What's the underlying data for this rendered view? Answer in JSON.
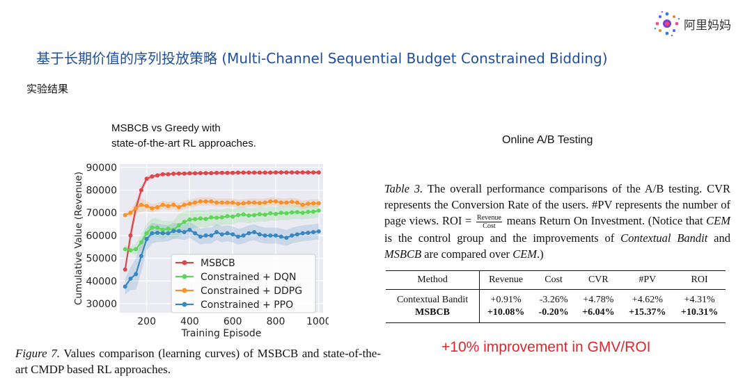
{
  "brand": {
    "name": "阿里妈妈"
  },
  "title": "基于长期价值的序列投放策略 (Multi-Channel Sequential Budget Constrained Bidding)",
  "section_label": "实验结果",
  "chart_heading": {
    "line1": "MSBCB vs Greedy with",
    "line2": "state-of-the-art RL approaches."
  },
  "figure_caption": {
    "label": "Figure 7.",
    "text": " Values comparison (learning curves) of MSBCB and state-of-the-art CMDP based RL approaches."
  },
  "ab_title": "Online A/B Testing",
  "table_caption": {
    "label": "Table 3.",
    "part1": " The overall performance comparisons of the A/B testing. CVR represents the Conversion Rate of the users. #PV represents the number of page views. ROI = ",
    "frac_num": "Revenue",
    "frac_den": "Cost",
    "part2": " means Return On Investment. (Notice that ",
    "em1": "CEM",
    "part3": " is the control group and the improvements of ",
    "em2": "Contextual Bandit",
    "part4": " and ",
    "em3": "MSBCB",
    "part5": " are compared over ",
    "em4": "CEM",
    "part6": ".)"
  },
  "results_table": {
    "headers": [
      "Method",
      "Revenue",
      "Cost",
      "CVR",
      "#PV",
      "ROI"
    ],
    "rows": [
      [
        "Contextual Bandit",
        "+0.91%",
        "-3.26%",
        "+4.78%",
        "+4.62%",
        "+4.31%"
      ],
      [
        "MSBCB",
        "+10.08%",
        "-0.20%",
        "+6.04%",
        "+15.37%",
        "+10.31%"
      ]
    ]
  },
  "highlight": "+10% improvement in GMV/ROI",
  "chart_data": {
    "type": "line",
    "title": "",
    "xlabel": "Training Episode",
    "ylabel": "Cumulative Value (Revenue)",
    "xlim": [
      75,
      1020
    ],
    "ylim": [
      26000,
      91500
    ],
    "xticks": [
      200,
      400,
      600,
      800,
      1000
    ],
    "yticks": [
      30000,
      40000,
      50000,
      60000,
      70000,
      80000,
      90000
    ],
    "grid": true,
    "legend_position": "lower-right",
    "x": [
      100,
      125,
      150,
      175,
      200,
      225,
      250,
      275,
      300,
      325,
      350,
      375,
      400,
      425,
      450,
      475,
      500,
      525,
      550,
      575,
      600,
      625,
      650,
      675,
      700,
      725,
      750,
      775,
      800,
      825,
      850,
      875,
      900,
      925,
      950,
      975,
      1000
    ],
    "series": [
      {
        "name": "MSBCB",
        "color": "#d9474b",
        "values": [
          45000,
          60000,
          72000,
          80000,
          85000,
          86000,
          86500,
          87000,
          87000,
          87200,
          87300,
          87300,
          87400,
          87400,
          87500,
          87500,
          87500,
          87600,
          87600,
          87600,
          87600,
          87700,
          87700,
          87700,
          87700,
          87700,
          87700,
          87700,
          87800,
          87800,
          87800,
          87800,
          87800,
          87800,
          87800,
          87800,
          87800
        ],
        "band": [
          1000,
          3500,
          3000,
          1800,
          1200,
          900,
          800,
          700,
          600,
          600,
          600,
          600,
          600,
          600,
          600,
          600,
          600,
          600,
          600,
          600,
          600,
          600,
          600,
          600,
          600,
          600,
          600,
          600,
          600,
          600,
          600,
          600,
          600,
          600,
          600,
          600,
          600
        ]
      },
      {
        "name": "Constrained + DQN",
        "color": "#5dd65a",
        "values": [
          54000,
          53500,
          54000,
          57000,
          61000,
          63500,
          63500,
          62500,
          63000,
          62500,
          64500,
          66000,
          67000,
          67200,
          67500,
          67300,
          68000,
          67800,
          68000,
          68500,
          68300,
          69000,
          69300,
          68800,
          69000,
          69400,
          69200,
          69800,
          69500,
          70000,
          69800,
          70200,
          70300,
          70000,
          70400,
          70500,
          71000
        ],
        "band": [
          1500,
          1500,
          2500,
          3500,
          4000,
          4000,
          4000,
          4000,
          3500,
          4000,
          5000,
          4500,
          4000,
          4000,
          3800,
          3800,
          3600,
          3600,
          3500,
          3500,
          3400,
          3300,
          3300,
          3300,
          3200,
          3200,
          3200,
          3100,
          3100,
          3000,
          3000,
          3000,
          3000,
          3000,
          3000,
          2900,
          2900
        ]
      },
      {
        "name": "Constrained + DDPG",
        "color": "#f5922c",
        "values": [
          69000,
          70000,
          72000,
          73500,
          73000,
          72000,
          72500,
          73500,
          73000,
          73500,
          72500,
          73500,
          74000,
          74500,
          75000,
          75000,
          75000,
          74500,
          74500,
          74500,
          74500,
          74000,
          74200,
          74500,
          74500,
          74300,
          74500,
          75000,
          75000,
          74500,
          74500,
          74800,
          74500,
          73500,
          74000,
          74200,
          74200
        ],
        "band": [
          800,
          1500,
          2500,
          3000,
          2200,
          1800,
          1800,
          1800,
          1800,
          1800,
          1800,
          1800,
          1800,
          1800,
          1800,
          1800,
          1800,
          1800,
          1800,
          1800,
          1800,
          1800,
          1800,
          1800,
          1800,
          1800,
          1800,
          1800,
          1800,
          1800,
          1800,
          1800,
          1800,
          1800,
          1800,
          1800,
          1800
        ]
      },
      {
        "name": "Constrained + PPO",
        "color": "#3a86c1",
        "values": [
          37500,
          41000,
          43000,
          51000,
          58500,
          61000,
          61200,
          61000,
          61000,
          62000,
          62000,
          61500,
          62500,
          61000,
          59500,
          60000,
          60000,
          61500,
          60500,
          61000,
          60500,
          59500,
          60000,
          61000,
          61500,
          60500,
          60000,
          60000,
          60000,
          59500,
          59000,
          60000,
          60500,
          61000,
          61200,
          61500,
          61800
        ],
        "band": [
          3500,
          5000,
          7000,
          7000,
          5000,
          4500,
          4000,
          3800,
          3500,
          3500,
          3500,
          3500,
          3500,
          3500,
          3500,
          3500,
          3500,
          3500,
          3500,
          3500,
          3500,
          3500,
          3500,
          3500,
          3500,
          3500,
          3500,
          3500,
          3500,
          3500,
          3500,
          3500,
          3500,
          3500,
          3500,
          3500,
          3500
        ]
      }
    ]
  }
}
